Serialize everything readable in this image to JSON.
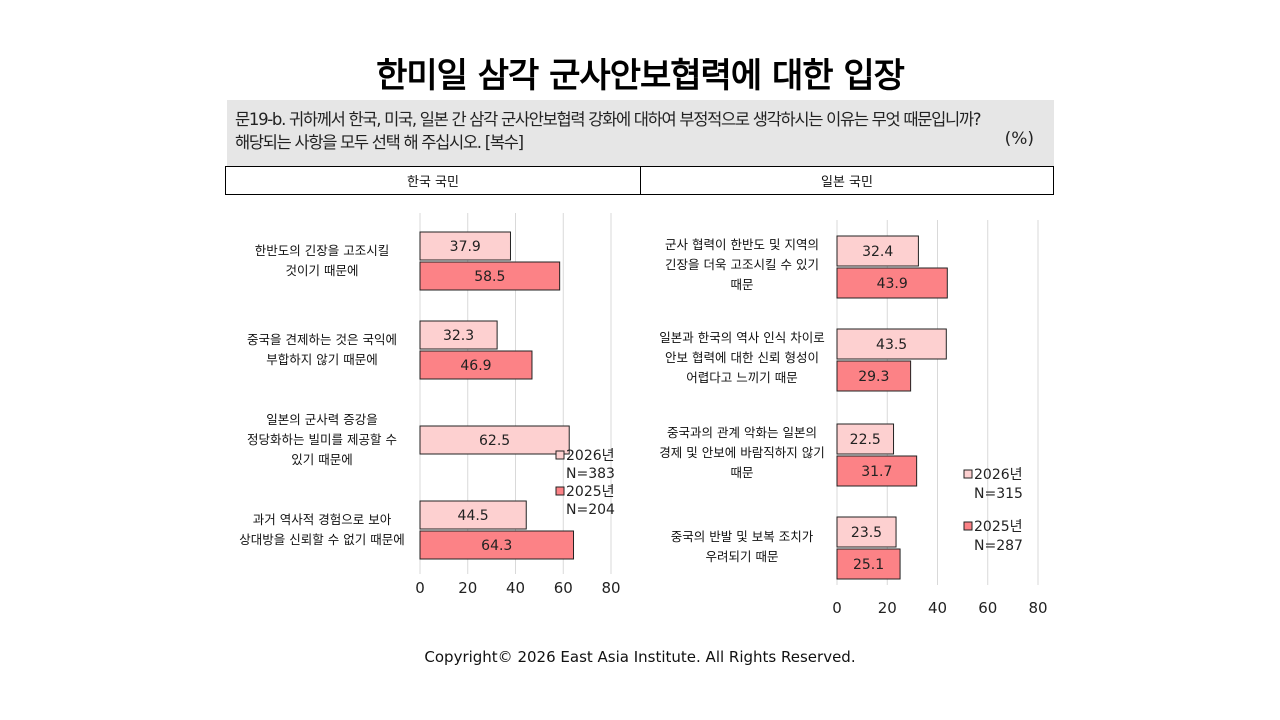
{
  "title": "한미일 삼각 군사안보협력에 대한 입장",
  "question": {
    "line1": "문19-b. 귀하께서 한국, 미국, 일본 간 삼각 군사안보협력 강화에 대하여 부정적으로 생각하시는 이유는 무엇 때문입니까?",
    "line2": "해당되는 사항을 모두 선택 해 주십시오. [복수]",
    "unit": "(%)"
  },
  "headers": {
    "left": "한국 국민",
    "right": "일본 국민"
  },
  "footer": "Copyright© 2026 East Asia Institute. All Rights Reserved.",
  "colors": {
    "series2026": "#fdd0d0",
    "series2025": "#fc8286",
    "grid": "#d9d9d9",
    "border": "#222222"
  },
  "chart_data": [
    {
      "type": "bar",
      "orientation": "horizontal",
      "categories": [
        [
          "한반도의 긴장을 고조시킬",
          "것이기 때문에"
        ],
        [
          "중국을 견제하는 것은 국익에",
          "부합하지 않기 때문에"
        ],
        [
          "일본의 군사력 증강을",
          "정당화하는 빌미를 제공할 수",
          "있기 때문에"
        ],
        [
          "과거 역사적 경험으로 보아",
          "상대방을 신뢰할 수 없기 때문에"
        ]
      ],
      "series": [
        {
          "name": "2026년",
          "n": "N=383",
          "values": [
            37.9,
            32.3,
            62.5,
            44.5
          ]
        },
        {
          "name": "2025년",
          "n": "N=204",
          "values": [
            58.5,
            46.9,
            null,
            64.3
          ]
        }
      ],
      "xlim": [
        0,
        80
      ],
      "xticks": [
        0,
        20,
        40,
        60,
        80
      ],
      "grid": true,
      "legend": "bottom-right"
    },
    {
      "type": "bar",
      "orientation": "horizontal",
      "categories": [
        [
          "군사 협력이 한반도 및 지역의",
          "긴장을 더욱 고조시킬 수 있기",
          "때문"
        ],
        [
          "일본과 한국의 역사 인식 차이로",
          "안보 협력에 대한 신뢰 형성이",
          "어렵다고 느끼기 때문"
        ],
        [
          "중국과의 관계 악화는 일본의",
          "경제 및 안보에 바람직하지 않기",
          "때문"
        ],
        [
          "중국의 반발 및 보복 조치가",
          "우려되기 때문"
        ]
      ],
      "series": [
        {
          "name": "2026년",
          "n": "N=315",
          "values": [
            32.4,
            43.5,
            22.5,
            23.5
          ]
        },
        {
          "name": "2025년",
          "n": "N=287",
          "values": [
            43.9,
            29.3,
            31.7,
            25.1
          ]
        }
      ],
      "xlim": [
        0,
        80
      ],
      "xticks": [
        0,
        20,
        40,
        60,
        80
      ],
      "grid": true,
      "legend": "bottom-right"
    }
  ]
}
